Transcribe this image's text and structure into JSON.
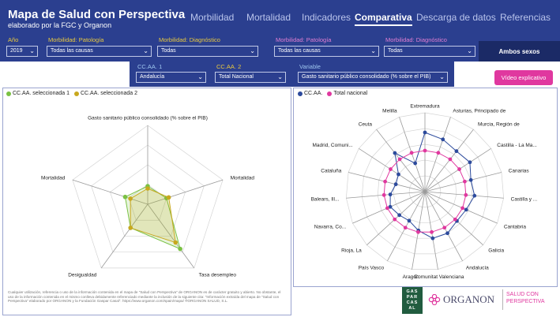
{
  "header": {
    "title": "Mapa de Salud con Perspectiva",
    "subtitle": "elaborado por la FGC y Organon",
    "nav": [
      {
        "label": "Morbilidad",
        "active": false
      },
      {
        "label": "Mortalidad",
        "active": false
      },
      {
        "label": "Indicadores",
        "active": false
      },
      {
        "label": "Comparativa",
        "active": true
      },
      {
        "label": "Descarga de datos",
        "active": false
      },
      {
        "label": "Referencias",
        "active": false
      }
    ]
  },
  "filters": {
    "anio": {
      "label": "Año",
      "value": "2019"
    },
    "morb_pat_1": {
      "label": "Morbilidad: Patología",
      "value": "Todas las causas"
    },
    "morb_diag_1": {
      "label": "Morbilidad: Diagnóstico",
      "value": "Todas"
    },
    "morb_pat_2": {
      "label": "Morbilidad: Patología",
      "value": "Todas las causas"
    },
    "morb_diag_2": {
      "label": "Morbilidad: Diagnóstico",
      "value": "Todas"
    },
    "sex_button": "Ambos sexos",
    "ccaa1": {
      "label": "CC.AA. 1",
      "value": "Andalucía"
    },
    "ccaa2": {
      "label": "CC.AA. 2",
      "value": "Total Nacional"
    },
    "variable": {
      "label": "Variable",
      "value": "Gasto sanitario público consolidado (% sobre el PIB)"
    }
  },
  "video_button": "Vídeo explicativo",
  "colors": {
    "header_bg": "#2b3f8f",
    "green": "#7ac143",
    "yellow": "#c8a81e",
    "blue": "#2c4a9c",
    "pink": "#e0389f"
  },
  "chart_data": [
    {
      "type": "radar",
      "legend": [
        "CC.AA. seleccionada 1",
        "CC.AA. seleccionada 2"
      ],
      "axes": [
        "Gasto sanitario público consolidado (% sobre el PIB)",
        "Mortalidad",
        "Tasa desempleo",
        "Desigualdad",
        "Mortalidad"
      ],
      "range": [
        0,
        1
      ],
      "series": [
        {
          "name": "CC.AA. seleccionada 1",
          "color": "#7ac143",
          "values": [
            0.23,
            0.25,
            0.7,
            0.37,
            0.3
          ]
        },
        {
          "name": "CC.AA. seleccionada 2",
          "color": "#c8a81e",
          "values": [
            0.2,
            0.28,
            0.6,
            0.37,
            0.23
          ]
        }
      ]
    },
    {
      "type": "radar",
      "legend": [
        "CC.AA.",
        "Total nacional"
      ],
      "axes": [
        "Extremadura",
        "Asturias, Principado de",
        "Murcia, Región de",
        "Castilla - La Ma...",
        "Canarias",
        "Castilla y ...",
        "Cantabria",
        "Galicia",
        "Andalucía",
        "Comunitat Valenciana",
        "Aragón",
        "País Vasco",
        "Rioja, La",
        "Navarra, Co...",
        "Balears, Ill...",
        "Cataluña",
        "Madrid, Comuni...",
        "Ceuta",
        "Melilla"
      ],
      "range": [
        0,
        1
      ],
      "series": [
        {
          "name": "CC.AA.",
          "color": "#2c4a9c",
          "values": [
            0.75,
            0.7,
            0.65,
            0.68,
            0.6,
            0.63,
            0.57,
            0.55,
            0.6,
            0.6,
            0.5,
            0.42,
            0.44,
            0.48,
            0.44,
            0.38,
            0.4,
            0.62,
            0.38
          ]
        },
        {
          "name": "Total nacional",
          "color": "#e0389f",
          "values": [
            0.52,
            0.52,
            0.52,
            0.52,
            0.52,
            0.52,
            0.52,
            0.52,
            0.52,
            0.52,
            0.52,
            0.52,
            0.52,
            0.52,
            0.52,
            0.52,
            0.52,
            0.52,
            0.52
          ]
        }
      ]
    }
  ],
  "footer": {
    "disclaimer": "Cualquier utilización, referencia o uso de la información contenida en el mapa de \"Salud con Perspectiva\" de ORGANON es de carácter gratuito y abierto. No obstante, el uso de la información contenida en el mismo conlleva debidamente referenciado mediante la inclusión de la siguiente cita: \"Información extraída del mapa de \"Salud con Perspectiva\" elaborado por ORGANON y la Fundación Gaspar Casal\". https://www.organon.com/spain/mapa/ ®ORGANON SALUD, S.L."
  },
  "logos": {
    "gaspar": [
      "GAS",
      "PAR",
      "CAS",
      "AL"
    ],
    "organon": "ORGANON",
    "salud": [
      "SALUD CON",
      "PERSPECTIVA"
    ]
  }
}
